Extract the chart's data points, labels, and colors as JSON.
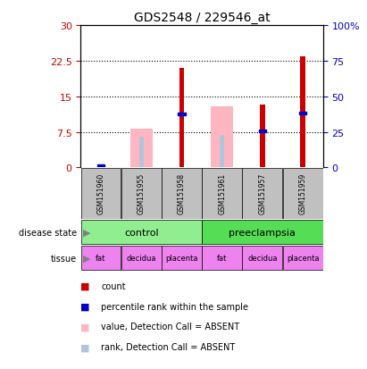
{
  "title": "GDS2548 / 229546_at",
  "samples": [
    "GSM151960",
    "GSM151955",
    "GSM151958",
    "GSM151961",
    "GSM151957",
    "GSM151959"
  ],
  "count_values": [
    0.15,
    0.0,
    21.0,
    0.0,
    13.2,
    23.5
  ],
  "rank_values": [
    0.3,
    0.0,
    11.2,
    0.0,
    7.7,
    11.5
  ],
  "absent_value_values": [
    0.0,
    8.2,
    0.0,
    12.8,
    0.0,
    0.0
  ],
  "absent_rank_values": [
    0.0,
    6.5,
    0.0,
    6.8,
    0.0,
    0.0
  ],
  "has_count": [
    true,
    false,
    true,
    false,
    true,
    true
  ],
  "has_rank": [
    true,
    false,
    true,
    false,
    true,
    true
  ],
  "has_absent_value": [
    false,
    true,
    false,
    true,
    false,
    false
  ],
  "has_absent_rank": [
    false,
    true,
    false,
    true,
    false,
    false
  ],
  "left_yticks": [
    0,
    7.5,
    15,
    22.5,
    30
  ],
  "left_ylabels": [
    "0",
    "7.5",
    "15",
    "22.5",
    "30"
  ],
  "right_yticks": [
    0,
    25,
    50,
    75,
    100
  ],
  "right_ylabels": [
    "0",
    "25",
    "50",
    "75",
    "100%"
  ],
  "y_max": 30,
  "tissue": [
    "fat",
    "decidua",
    "placenta",
    "fat",
    "decidua",
    "placenta"
  ],
  "tissue_color": "#EE82EE",
  "sample_bg": "#C0C0C0",
  "count_color": "#CC0000",
  "rank_color": "#0000CC",
  "absent_value_color": "#FFB6C1",
  "absent_rank_color": "#B0C4DE",
  "dotted_lines": [
    7.5,
    15,
    22.5
  ],
  "left_tick_color": "#CC0000",
  "right_tick_color": "#0000CC",
  "control_color": "#90EE90",
  "preeclampsia_color": "#55DD55",
  "legend_items": [
    [
      "#CC0000",
      "count"
    ],
    [
      "#0000CC",
      "percentile rank within the sample"
    ],
    [
      "#FFB6C1",
      "value, Detection Call = ABSENT"
    ],
    [
      "#B0C4DE",
      "rank, Detection Call = ABSENT"
    ]
  ]
}
